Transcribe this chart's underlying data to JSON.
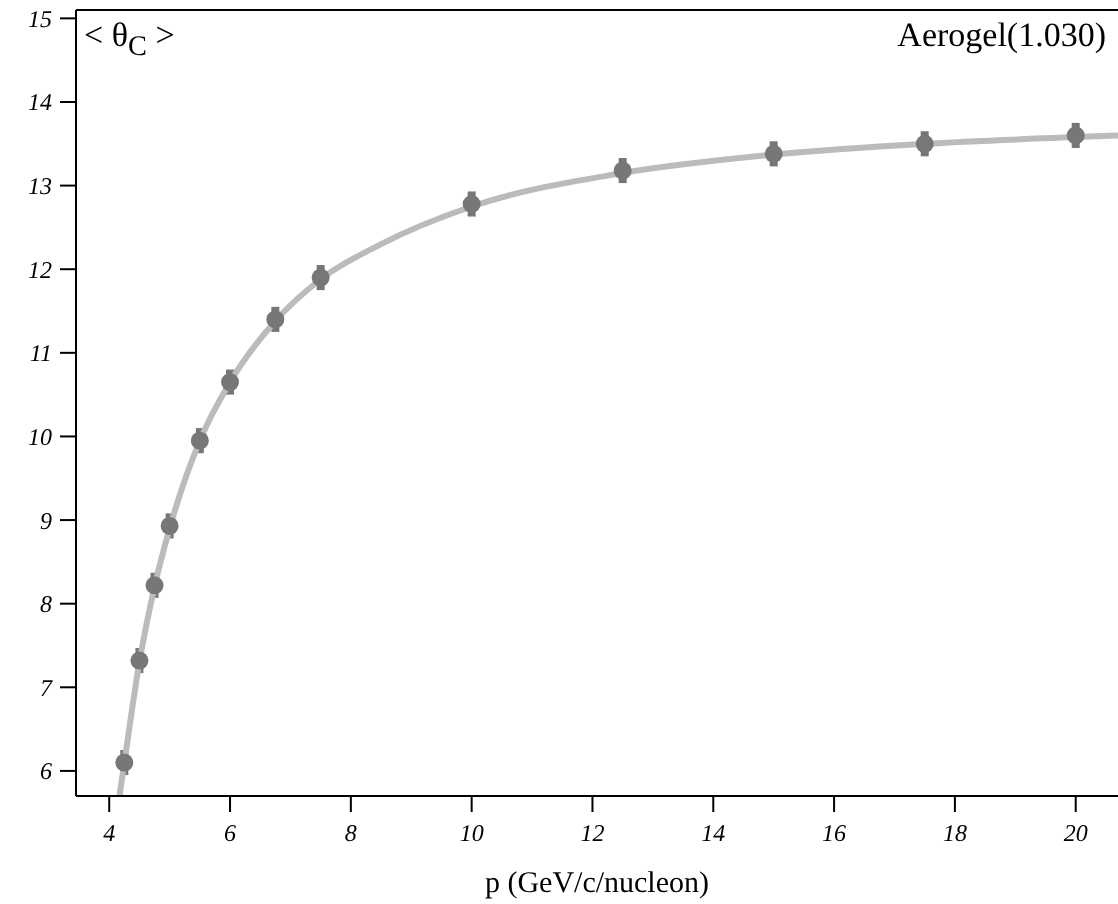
{
  "chart_data": {
    "type": "scatter",
    "ylabel": "< θ$_{C}$ >",
    "xlabel": "p (GeV/c/nucleon)",
    "annotations": [
      "Aerogel(1.030)"
    ],
    "x": [
      4.25,
      4.5,
      4.75,
      5,
      5.5,
      6,
      6.75,
      7.5,
      10,
      12.5,
      15,
      17.5,
      20
    ],
    "series": [
      {
        "color": "#777777",
        "values": [
          6.1,
          7.32,
          8.22,
          8.93,
          9.95,
          10.65,
          11.4,
          11.9,
          12.78,
          13.18,
          13.38,
          13.5,
          13.6
        ],
        "errors": [
          0.15,
          0.15,
          0.15,
          0.15,
          0.15,
          0.15,
          0.15,
          0.15,
          0.15,
          0.15,
          0.15,
          0.15,
          0.15
        ]
      },
      {
        "type": "line",
        "marker": "none",
        "color": "#bbbbbb",
        "x": [
          4.17,
          4.25,
          4.5,
          4.75,
          5,
          5.5,
          6,
          6.75,
          7.5,
          8.5,
          10,
          12.5,
          15,
          17.5,
          20,
          20.7
        ],
        "values": [
          5.7,
          6.1,
          7.3,
          8.2,
          8.9,
          9.95,
          10.65,
          11.38,
          11.88,
          12.3,
          12.75,
          13.15,
          13.37,
          13.5,
          13.58,
          13.6
        ]
      }
    ],
    "marker": "circle",
    "line_style": "solid",
    "grid": false,
    "legend": false,
    "xlim": [
      3.45,
      20.7
    ],
    "xticks": [
      4,
      6,
      8,
      10,
      12,
      14,
      16,
      18,
      20
    ],
    "ylim": [
      5.7,
      15.1
    ],
    "yticks": [
      6,
      7,
      8,
      9,
      10,
      11,
      12,
      13,
      14,
      15
    ]
  }
}
